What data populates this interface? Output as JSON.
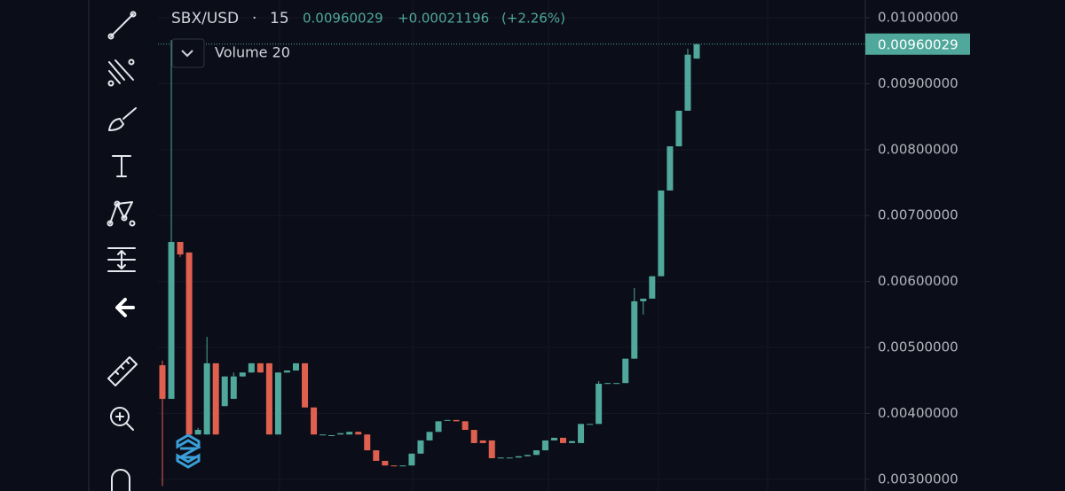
{
  "chart_data": {
    "type": "candlestick",
    "symbol": "SBX/USD",
    "separator": "·",
    "interval": "15",
    "last_price": 0.00960029,
    "change": "+0.00021196",
    "change_pct": "(+2.26%)",
    "study": "Volume 20",
    "up_color": "#4fa89b",
    "down_color": "#e0604f",
    "ylim": [
      0.002823,
      0.010269
    ],
    "yticks": [
      {
        "value": 0.003,
        "label": "0.00300000"
      },
      {
        "value": 0.004,
        "label": "0.00400000"
      },
      {
        "value": 0.005,
        "label": "0.00500000"
      },
      {
        "value": 0.006,
        "label": "0.00600000"
      },
      {
        "value": 0.007,
        "label": "0.00700000"
      },
      {
        "value": 0.008,
        "label": "0.00800000"
      },
      {
        "value": 0.009,
        "label": "0.00900000"
      },
      {
        "value": 0.01,
        "label": "0.01000000"
      }
    ],
    "grid": true,
    "open": [
      0.00473,
      0.00422,
      0.0066,
      0.00644,
      0.00368,
      0.00368,
      0.00476,
      0.00411,
      0.00422,
      0.00456,
      0.00462,
      0.00476,
      0.00476,
      0.00368,
      0.00462,
      0.00465,
      0.00476,
      0.00409,
      0.00368,
      0.00367,
      0.00368,
      0.00368,
      0.00372,
      0.00368,
      0.00344,
      0.00328,
      0.00321,
      0.00321,
      0.00321,
      0.00339,
      0.00359,
      0.00372,
      0.0039,
      0.0039,
      0.00388,
      0.00375,
      0.00359,
      0.00359,
      0.00333,
      0.00333,
      0.00333,
      0.00335,
      0.00337,
      0.00344,
      0.00359,
      0.00363,
      0.00355,
      0.00355,
      0.00384,
      0.00384,
      0.00445,
      0.00446,
      0.00446,
      0.00483,
      0.0057,
      0.00574,
      0.00608,
      0.00738,
      0.00805,
      0.00859,
      0.00938
    ],
    "high": [
      0.0048,
      0.00966,
      0.0066,
      0.00644,
      0.00378,
      0.00516,
      0.00476,
      0.00456,
      0.00462,
      0.00462,
      0.00476,
      0.00476,
      0.00476,
      0.00462,
      0.00465,
      0.00476,
      0.00476,
      0.00409,
      0.00368,
      0.00367,
      0.0037,
      0.00372,
      0.00372,
      0.00368,
      0.00344,
      0.00328,
      0.00321,
      0.00321,
      0.00339,
      0.00359,
      0.00372,
      0.00388,
      0.0039,
      0.0039,
      0.00388,
      0.00375,
      0.00359,
      0.00359,
      0.00333,
      0.00333,
      0.00335,
      0.00337,
      0.00344,
      0.00359,
      0.00363,
      0.00363,
      0.00358,
      0.00384,
      0.00384,
      0.00449,
      0.00446,
      0.00446,
      0.00483,
      0.0059,
      0.00574,
      0.00608,
      0.00738,
      0.00805,
      0.00859,
      0.00953,
      0.0096
    ],
    "low": [
      0.0029,
      0.00422,
      0.00637,
      0.00368,
      0.00368,
      0.00368,
      0.00368,
      0.00411,
      0.00422,
      0.00456,
      0.00462,
      0.00462,
      0.00368,
      0.00368,
      0.00462,
      0.00465,
      0.00409,
      0.00368,
      0.00368,
      0.00367,
      0.00368,
      0.00368,
      0.00368,
      0.00344,
      0.00328,
      0.00321,
      0.0032,
      0.00321,
      0.00321,
      0.00339,
      0.00359,
      0.00372,
      0.0039,
      0.00388,
      0.00375,
      0.00355,
      0.00355,
      0.00332,
      0.00333,
      0.00333,
      0.00333,
      0.00335,
      0.00337,
      0.00344,
      0.00359,
      0.00355,
      0.00355,
      0.00355,
      0.00384,
      0.00384,
      0.00445,
      0.00446,
      0.00446,
      0.00483,
      0.0055,
      0.00574,
      0.00608,
      0.00738,
      0.00805,
      0.00859,
      0.00938
    ],
    "close": [
      0.00422,
      0.0066,
      0.00641,
      0.00368,
      0.00375,
      0.00476,
      0.00368,
      0.00456,
      0.00456,
      0.00462,
      0.00476,
      0.00462,
      0.00368,
      0.00462,
      0.00465,
      0.00476,
      0.00409,
      0.00368,
      0.00368,
      0.00367,
      0.0037,
      0.00372,
      0.00368,
      0.00344,
      0.00328,
      0.00321,
      0.0032,
      0.00321,
      0.00339,
      0.00359,
      0.00372,
      0.00388,
      0.0039,
      0.00388,
      0.00375,
      0.00355,
      0.00355,
      0.00332,
      0.00333,
      0.00333,
      0.00335,
      0.00337,
      0.00344,
      0.00359,
      0.00363,
      0.00355,
      0.00358,
      0.00384,
      0.00384,
      0.00445,
      0.00446,
      0.00446,
      0.00483,
      0.0057,
      0.00574,
      0.00608,
      0.00738,
      0.00805,
      0.00859,
      0.00944,
      0.0096
    ]
  }
}
